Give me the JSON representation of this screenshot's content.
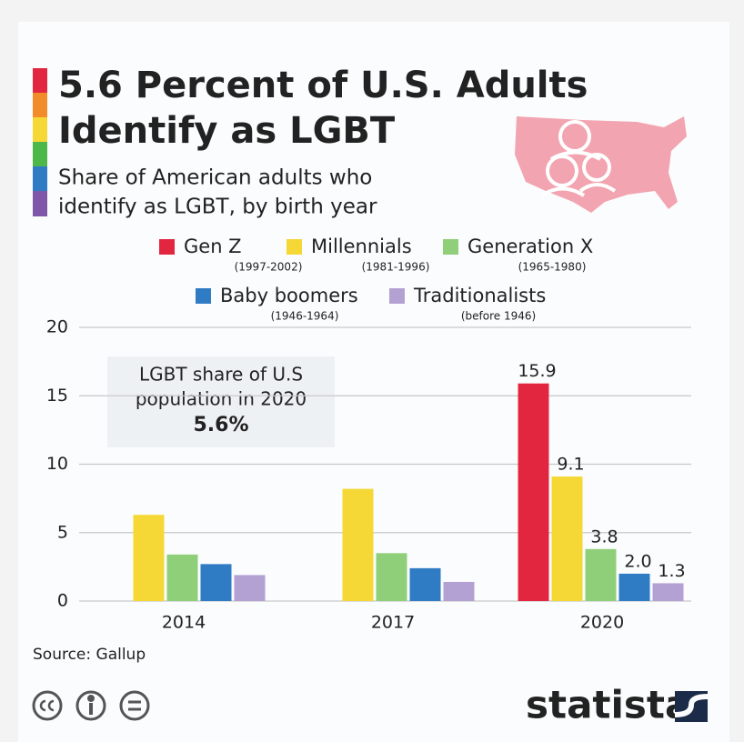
{
  "chart_data": {
    "type": "bar",
    "title": [
      "5.6 Percent of U.S. Adults",
      "Identify as LGBT"
    ],
    "subtitle": [
      "Share of American adults who",
      "identify as LGBT, by birth year"
    ],
    "categories": [
      "2014",
      "2017",
      "2020"
    ],
    "series": [
      {
        "name": "Gen Z",
        "years": "(1997-2002)",
        "color": "#e3263f",
        "values": [
          null,
          null,
          15.9
        ],
        "value_labels": [
          null,
          null,
          "15.9"
        ]
      },
      {
        "name": "Millennials",
        "years": "(1981-1996)",
        "color": "#f5d836",
        "values": [
          6.3,
          8.2,
          9.1
        ],
        "value_labels": [
          null,
          null,
          "9.1"
        ]
      },
      {
        "name": "Generation X",
        "years": "(1965-1980)",
        "color": "#8fcf7a",
        "values": [
          3.4,
          3.5,
          3.8
        ],
        "value_labels": [
          null,
          null,
          "3.8"
        ]
      },
      {
        "name": "Baby boomers",
        "years": "(1946-1964)",
        "color": "#2f7bc4",
        "values": [
          2.7,
          2.4,
          2.0
        ],
        "value_labels": [
          null,
          null,
          "2.0"
        ]
      },
      {
        "name": "Traditionalists",
        "years": "(before 1946)",
        "color": "#b3a1d3",
        "values": [
          1.9,
          1.4,
          1.3
        ],
        "value_labels": [
          null,
          null,
          "1.3"
        ]
      }
    ],
    "ylim": [
      0,
      20
    ],
    "yticks": [
      0,
      5,
      10,
      15,
      20
    ],
    "grid": true,
    "annotation": {
      "text": [
        "LGBT share of U.S",
        "population in 2020"
      ],
      "value": "5.6%"
    },
    "source": "Source: Gallup",
    "logo": "statista"
  }
}
